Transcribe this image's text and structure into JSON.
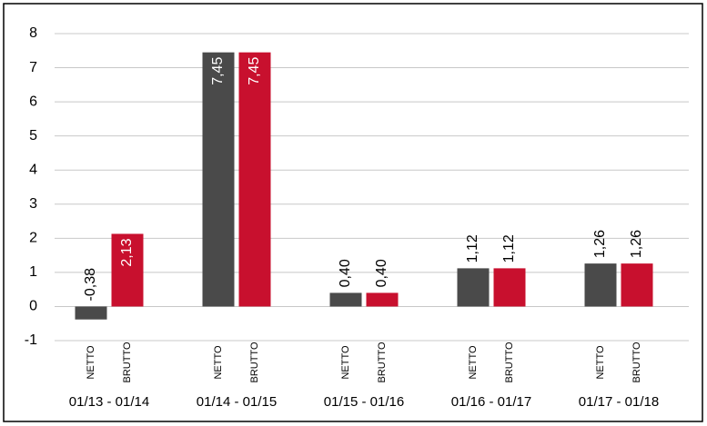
{
  "chart_data": {
    "type": "bar",
    "categories": [
      "01/13 - 01/14",
      "01/14 - 01/15",
      "01/15 - 01/16",
      "01/16 - 01/17",
      "01/17 - 01/18"
    ],
    "series": [
      {
        "name": "NETTO",
        "color": "#4a4a4a",
        "values": [
          -0.38,
          7.45,
          0.4,
          1.12,
          1.26
        ],
        "value_labels": [
          "-0,38",
          "7,45",
          "0,40",
          "1,12",
          "1,26"
        ]
      },
      {
        "name": "BRUTTO",
        "color": "#c8102e",
        "values": [
          2.13,
          7.45,
          0.4,
          1.12,
          1.26
        ],
        "value_labels": [
          "2,13",
          "7,45",
          "0,40",
          "1,12",
          "1,26"
        ]
      }
    ],
    "ylim": [
      -1,
      8
    ],
    "yticks": [
      -1,
      0,
      1,
      2,
      3,
      4,
      5,
      6,
      7,
      8
    ],
    "grid": true
  }
}
